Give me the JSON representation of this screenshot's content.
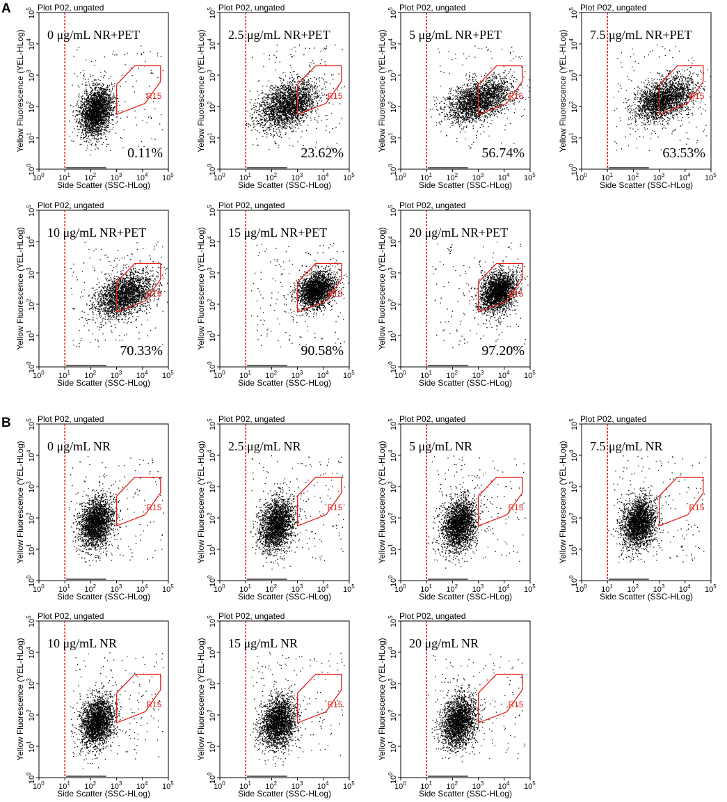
{
  "figure": {
    "panel_labels": [
      "A",
      "B"
    ]
  },
  "plot_common": {
    "plot_title": "Plot P02, ungated",
    "xlabel": "Side Scatter (SSC-HLog)",
    "ylabel": "Yellow Fluorescence (YEL-HLog)",
    "x_tick_labels": [
      "10^0",
      "10^1",
      "10^2",
      "10^3",
      "10^4",
      "10^5"
    ],
    "y_tick_labels": [
      "10^0",
      "10^1",
      "10^2",
      "10^3",
      "10^4",
      "10^5"
    ],
    "x_range_log10": [
      0,
      5
    ],
    "y_range_log10": [
      0,
      5
    ],
    "threshold_x_log10": 1,
    "gate_label": "R15",
    "gate_polygon_log10": [
      [
        3.0,
        2.7
      ],
      [
        3.7,
        3.3
      ],
      [
        4.7,
        3.3
      ],
      [
        4.7,
        2.8
      ],
      [
        4.1,
        2.1
      ],
      [
        3.0,
        1.75
      ],
      [
        3.0,
        2.7
      ]
    ],
    "colors": {
      "axis": "#000000",
      "points": "#000000",
      "threshold": "#e8201a",
      "gate": "#e8201a"
    }
  },
  "chart_data": [
    {
      "type": "scatter",
      "panel": "A",
      "condition": "0 μg/mL NR+PET",
      "gated_percent": "0.11%",
      "cluster_center_log10": [
        2.2,
        1.85
      ],
      "cluster_spread_log10": [
        0.32,
        0.38
      ]
    },
    {
      "type": "scatter",
      "panel": "A",
      "condition": "2.5 μg/mL NR+PET",
      "gated_percent": "23.62%",
      "cluster_center_log10": [
        2.6,
        2.05
      ],
      "cluster_spread_log10": [
        0.55,
        0.35
      ]
    },
    {
      "type": "scatter",
      "panel": "A",
      "condition": "5 μg/mL NR+PET",
      "gated_percent": "56.74%",
      "cluster_center_log10": [
        3.0,
        2.2
      ],
      "cluster_spread_log10": [
        0.6,
        0.3
      ]
    },
    {
      "type": "scatter",
      "panel": "A",
      "condition": "7.5 μg/mL NR+PET",
      "gated_percent": "63.53%",
      "cluster_center_log10": [
        3.2,
        2.25
      ],
      "cluster_spread_log10": [
        0.55,
        0.32
      ]
    },
    {
      "type": "scatter",
      "panel": "A",
      "condition": "10 μg/mL NR+PET",
      "gated_percent": "70.33%",
      "cluster_center_log10": [
        3.3,
        2.3
      ],
      "cluster_spread_log10": [
        0.55,
        0.33
      ]
    },
    {
      "type": "scatter",
      "panel": "A",
      "condition": "15 μg/mL NR+PET",
      "gated_percent": "90.58%",
      "cluster_center_log10": [
        3.7,
        2.45
      ],
      "cluster_spread_log10": [
        0.35,
        0.28
      ]
    },
    {
      "type": "scatter",
      "panel": "A",
      "condition": "20 μg/mL NR+PET",
      "gated_percent": "97.20%",
      "cluster_center_log10": [
        3.75,
        2.4
      ],
      "cluster_spread_log10": [
        0.35,
        0.3
      ]
    },
    {
      "type": "scatter",
      "panel": "B",
      "condition": "0 μg/mL NR",
      "gated_percent": "",
      "cluster_center_log10": [
        2.2,
        1.85
      ],
      "cluster_spread_log10": [
        0.32,
        0.38
      ]
    },
    {
      "type": "scatter",
      "panel": "B",
      "condition": "2.5 μg/mL NR",
      "gated_percent": "",
      "cluster_center_log10": [
        2.2,
        1.8
      ],
      "cluster_spread_log10": [
        0.32,
        0.4
      ]
    },
    {
      "type": "scatter",
      "panel": "B",
      "condition": "5 μg/mL NR",
      "gated_percent": "",
      "cluster_center_log10": [
        2.25,
        1.8
      ],
      "cluster_spread_log10": [
        0.32,
        0.4
      ]
    },
    {
      "type": "scatter",
      "panel": "B",
      "condition": "7.5 μg/mL NR",
      "gated_percent": "",
      "cluster_center_log10": [
        2.2,
        1.85
      ],
      "cluster_spread_log10": [
        0.32,
        0.38
      ]
    },
    {
      "type": "scatter",
      "panel": "B",
      "condition": "10 μg/mL NR",
      "gated_percent": "",
      "cluster_center_log10": [
        2.25,
        1.8
      ],
      "cluster_spread_log10": [
        0.32,
        0.4
      ]
    },
    {
      "type": "scatter",
      "panel": "B",
      "condition": "15 μg/mL NR",
      "gated_percent": "",
      "cluster_center_log10": [
        2.25,
        1.8
      ],
      "cluster_spread_log10": [
        0.32,
        0.4
      ]
    },
    {
      "type": "scatter",
      "panel": "B",
      "condition": "20 μg/mL NR",
      "gated_percent": "",
      "cluster_center_log10": [
        2.25,
        1.8
      ],
      "cluster_spread_log10": [
        0.32,
        0.4
      ]
    }
  ]
}
